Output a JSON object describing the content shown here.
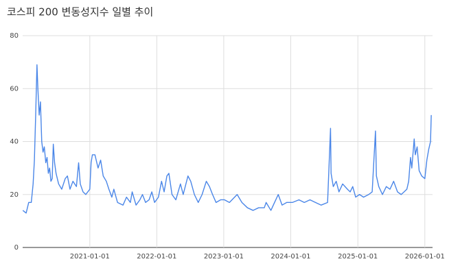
{
  "chart_data": {
    "type": "line",
    "title": "코스피 200 변동성지수 일별 추이",
    "x": [
      "2020-01-02",
      "2020-01-20",
      "2020-02-03",
      "2020-02-17",
      "2020-02-27",
      "2020-03-05",
      "2020-03-12",
      "2020-03-19",
      "2020-03-24",
      "2020-03-31",
      "2020-04-07",
      "2020-04-14",
      "2020-04-21",
      "2020-04-28",
      "2020-05-06",
      "2020-05-13",
      "2020-05-20",
      "2020-05-27",
      "2020-06-03",
      "2020-06-10",
      "2020-06-16",
      "2020-06-23",
      "2020-07-01",
      "2020-07-15",
      "2020-08-01",
      "2020-08-20",
      "2020-09-01",
      "2020-09-15",
      "2020-10-01",
      "2020-10-20",
      "2020-11-01",
      "2020-11-10",
      "2020-11-25",
      "2020-12-10",
      "2021-01-01",
      "2021-01-08",
      "2021-01-15",
      "2021-01-29",
      "2021-02-15",
      "2021-03-01",
      "2021-03-15",
      "2021-04-01",
      "2021-04-15",
      "2021-05-01",
      "2021-05-12",
      "2021-06-01",
      "2021-07-01",
      "2021-07-20",
      "2021-08-10",
      "2021-08-20",
      "2021-09-10",
      "2021-10-01",
      "2021-10-15",
      "2021-11-01",
      "2021-11-20",
      "2021-12-05",
      "2021-12-20",
      "2022-01-10",
      "2022-01-27",
      "2022-02-10",
      "2022-02-25",
      "2022-03-08",
      "2022-03-25",
      "2022-04-15",
      "2022-05-10",
      "2022-05-25",
      "2022-06-20",
      "2022-07-05",
      "2022-07-25",
      "2022-08-15",
      "2022-09-05",
      "2022-09-28",
      "2022-10-15",
      "2022-11-01",
      "2022-11-20",
      "2022-12-15",
      "2023-01-05",
      "2023-02-01",
      "2023-03-15",
      "2023-04-10",
      "2023-05-10",
      "2023-06-10",
      "2023-07-10",
      "2023-08-10",
      "2023-08-20",
      "2023-09-15",
      "2023-10-05",
      "2023-10-25",
      "2023-11-15",
      "2023-12-10",
      "2024-01-10",
      "2024-02-15",
      "2024-03-15",
      "2024-04-15",
      "2024-05-15",
      "2024-06-15",
      "2024-07-20",
      "2024-08-05",
      "2024-08-08",
      "2024-08-20",
      "2024-09-05",
      "2024-09-20",
      "2024-10-10",
      "2024-11-05",
      "2024-11-20",
      "2024-12-04",
      "2024-12-20",
      "2025-01-10",
      "2025-02-01",
      "2025-03-01",
      "2025-03-20",
      "2025-04-07",
      "2025-04-12",
      "2025-04-25",
      "2025-05-15",
      "2025-06-05",
      "2025-06-25",
      "2025-07-15",
      "2025-08-05",
      "2025-08-25",
      "2025-09-10",
      "2025-09-25",
      "2025-10-05",
      "2025-10-15",
      "2025-10-22",
      "2025-11-04",
      "2025-11-10",
      "2025-11-20",
      "2025-12-01",
      "2025-12-15",
      "2026-01-01",
      "2026-01-12",
      "2026-01-22",
      "2026-02-01",
      "2026-02-05"
    ],
    "series": [
      {
        "name": "코스피 200 변동성지수",
        "color": "#4a86e8",
        "values": [
          14,
          13,
          17,
          17,
          24,
          33,
          50,
          69,
          60,
          50,
          55,
          40,
          36,
          38,
          32,
          34,
          28,
          30,
          25,
          26,
          39,
          32,
          28,
          24,
          22,
          26,
          27,
          22,
          25,
          23,
          32,
          24,
          21,
          20,
          22,
          32,
          35,
          35,
          30,
          33,
          27,
          25,
          22,
          19,
          22,
          17,
          16,
          19,
          17,
          21,
          16,
          18,
          20,
          17,
          18,
          21,
          17,
          19,
          25,
          21,
          27,
          28,
          20,
          18,
          24,
          20,
          27,
          25,
          20,
          17,
          20,
          25,
          23,
          20,
          17,
          18,
          18,
          17,
          20,
          17,
          15,
          14,
          15,
          15,
          17,
          14,
          17,
          20,
          16,
          17,
          17,
          18,
          17,
          18,
          17,
          16,
          17,
          45,
          28,
          23,
          25,
          21,
          24,
          22,
          21,
          23,
          19,
          20,
          19,
          20,
          21,
          44,
          27,
          23,
          20,
          23,
          22,
          25,
          21,
          20,
          21,
          22,
          25,
          34,
          30,
          41,
          35,
          38,
          29,
          27,
          26,
          33,
          37,
          40,
          50
        ]
      }
    ],
    "xlim": [
      "2020-01-01",
      "2026-02-12"
    ],
    "xticks": [
      "2021-01-01",
      "2022-01-01",
      "2023-01-01",
      "2024-01-01",
      "2025-01-01",
      "2026-01-01"
    ],
    "ylim": [
      0,
      80
    ],
    "yticks": [
      0,
      20,
      40,
      60,
      80
    ],
    "grid": true
  }
}
